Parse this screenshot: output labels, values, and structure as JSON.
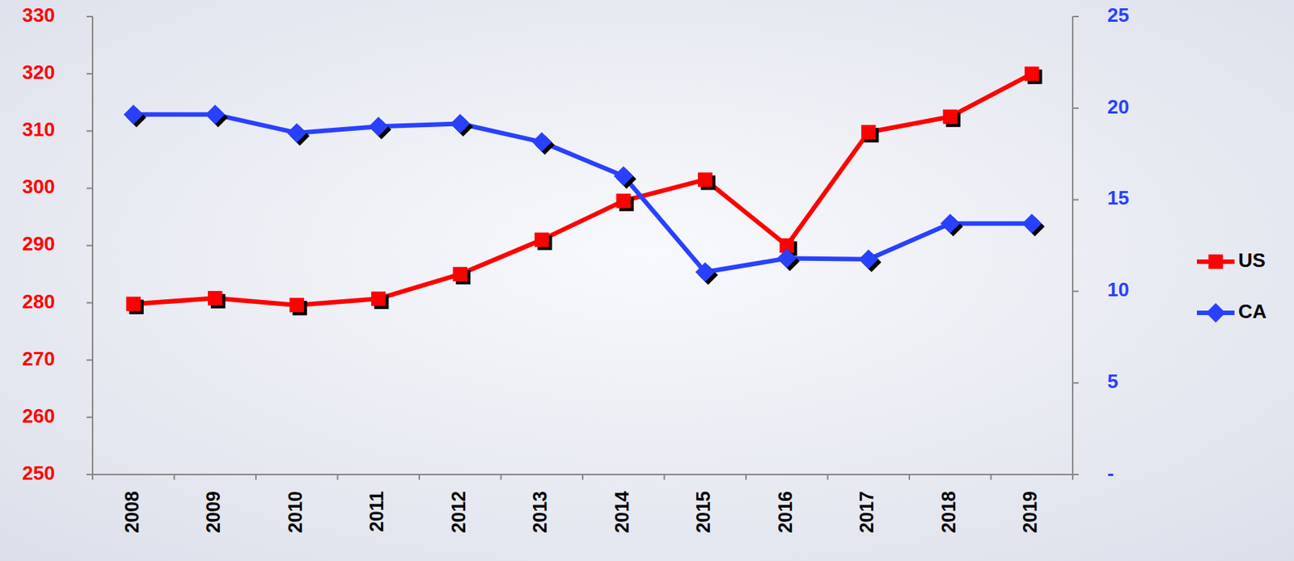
{
  "chart_data": {
    "type": "line",
    "categories": [
      "2008",
      "2009",
      "2010",
      "2011",
      "2012",
      "2013",
      "2014",
      "2015",
      "2016",
      "2017",
      "2018",
      "2019"
    ],
    "series": [
      {
        "name": "US",
        "color": "#ff0000",
        "marker": "square",
        "values": [
          279.8,
          280.8,
          279.6,
          280.7,
          285,
          291,
          297.8,
          301.5,
          290,
          309.8,
          312.5,
          320
        ]
      },
      {
        "name": "CA",
        "color": "#2841ff",
        "marker": "diamond",
        "axis": "y2",
        "values": [
          19.65,
          19.65,
          18.65,
          19.0,
          19.15,
          18.15,
          16.3,
          11.05,
          11.8,
          11.75,
          13.7,
          13.7
        ]
      }
    ],
    "ylim": [
      250,
      330
    ],
    "yticks": [
      250,
      260,
      270,
      280,
      290,
      300,
      310,
      320,
      330
    ],
    "y2lim": [
      0,
      25
    ],
    "y2ticks": [
      {
        "value": 0,
        "label": "-"
      },
      5,
      10,
      15,
      20,
      25
    ],
    "grid": false,
    "legend": "right"
  }
}
